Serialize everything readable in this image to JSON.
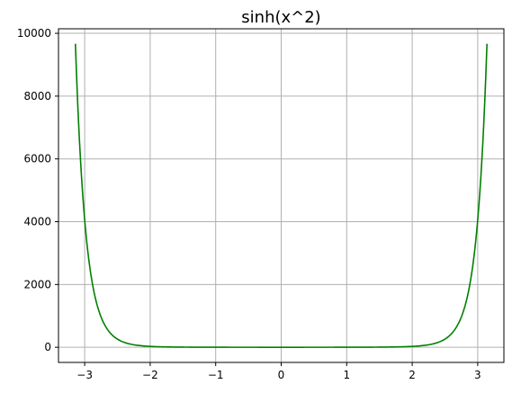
{
  "chart_data": {
    "type": "line",
    "title": "sinh(x^2)",
    "xlabel": "",
    "ylabel": "",
    "xlim": [
      -3.4,
      3.4
    ],
    "ylim": [
      -483,
      10145
    ],
    "x_ticks": [
      -3,
      -2,
      -1,
      0,
      1,
      2,
      3
    ],
    "x_tick_labels": [
      "−3",
      "−2",
      "−1",
      "0",
      "1",
      "2",
      "3"
    ],
    "y_ticks": [
      0,
      2000,
      4000,
      6000,
      8000,
      10000
    ],
    "y_tick_labels": [
      "0",
      "2000",
      "4000",
      "6000",
      "8000",
      "10000"
    ],
    "grid": true,
    "series": [
      {
        "function": "sinh(x^2)",
        "x_range": [
          -3.14159,
          3.14159
        ],
        "color": "#008000",
        "x": [
          -3.14,
          -3.0,
          -2.9,
          -2.8,
          -2.7,
          -2.6,
          -2.5,
          -2.2,
          -2.0,
          -1.5,
          -1.0,
          0.0,
          1.0,
          1.5,
          2.0,
          2.2,
          2.5,
          2.6,
          2.7,
          2.8,
          2.9,
          3.0,
          3.14
        ],
        "y": [
          9665,
          4052,
          2247,
          1277,
          743,
          433,
          259,
          63,
          27.3,
          4.7,
          1.2,
          0,
          1.2,
          4.7,
          27.3,
          63,
          259,
          433,
          743,
          1277,
          2247,
          4052,
          9665
        ]
      }
    ]
  }
}
